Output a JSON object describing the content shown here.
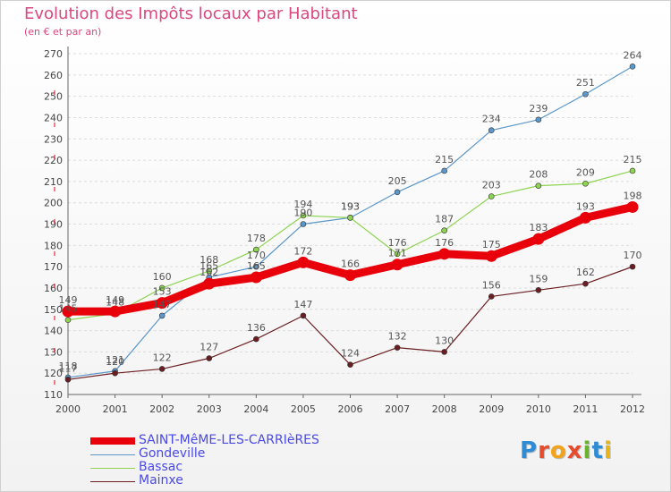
{
  "header": {
    "title": "Evolution des Impôts locaux par Habitant",
    "subtitle": "(en € et par an)"
  },
  "logo": {
    "text": "Proxiti",
    "colors": [
      "#2e8bd6",
      "#e64b2d",
      "#f2a31b",
      "#e64b2d",
      "#6ab42d",
      "#2e8bd6",
      "#e6b41b"
    ]
  },
  "chart_data": {
    "type": "line",
    "x": [
      "2000",
      "2001",
      "2002",
      "2003",
      "2004",
      "2005",
      "2006",
      "2007",
      "2008",
      "2009",
      "2010",
      "2011",
      "2012"
    ],
    "ylim": [
      110,
      270
    ],
    "yticks": [
      "110",
      "120",
      "130",
      "140",
      "150",
      "160",
      "170",
      "180",
      "190",
      "200",
      "210",
      "220",
      "230",
      "240",
      "250",
      "260",
      "270"
    ],
    "grid": "horizontal",
    "legend_position": "bottom-left",
    "series": [
      {
        "name": "SAINT-MêME-LES-CARRIèRES",
        "color": "#e8000b",
        "values": [
          149,
          149,
          153,
          162,
          165,
          172,
          166,
          171,
          176,
          175,
          183,
          193,
          198
        ]
      },
      {
        "name": "Gondeville",
        "color": "#5b97c9",
        "values": [
          118,
          121,
          147,
          165,
          170,
          190,
          193,
          205,
          215,
          234,
          239,
          251,
          264
        ]
      },
      {
        "name": "Bassac",
        "color": "#8ed452",
        "values": [
          145,
          148,
          160,
          168,
          178,
          194,
          193,
          176,
          187,
          203,
          208,
          209,
          215
        ]
      },
      {
        "name": "Mainxe",
        "color": "#6b1e22",
        "values": [
          117,
          120,
          122,
          127,
          136,
          147,
          124,
          132,
          130,
          156,
          159,
          162,
          170
        ]
      }
    ]
  }
}
